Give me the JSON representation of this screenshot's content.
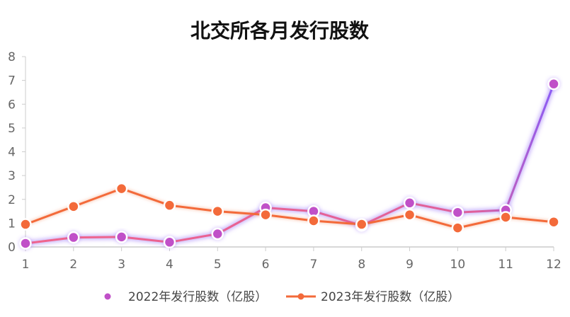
{
  "chart_data": {
    "type": "line",
    "title": "北交所各月发行股数",
    "xlabel": "",
    "ylabel": "",
    "categories": [
      "1",
      "2",
      "3",
      "4",
      "5",
      "6",
      "7",
      "8",
      "9",
      "10",
      "11",
      "12"
    ],
    "ylim": [
      0,
      8
    ],
    "yticks": [
      0,
      1,
      2,
      3,
      4,
      5,
      6,
      7,
      8
    ],
    "grid": false,
    "legend_position": "bottom",
    "series": [
      {
        "name": "2022年发行股数（亿股）",
        "values": [
          0.15,
          0.4,
          0.42,
          0.2,
          0.55,
          1.65,
          1.5,
          0.9,
          1.85,
          1.45,
          1.55,
          6.85
        ],
        "color_start": "#f0648c",
        "color_end": "#8a5cf6",
        "marker_fill": "#c050c8"
      },
      {
        "name": "2023年发行股数（亿股）",
        "values": [
          0.95,
          1.7,
          2.45,
          1.75,
          1.5,
          1.35,
          1.1,
          0.95,
          1.35,
          0.8,
          1.25,
          1.05
        ],
        "color": "#f36a3a",
        "marker_fill": "#f36a3a"
      }
    ]
  }
}
